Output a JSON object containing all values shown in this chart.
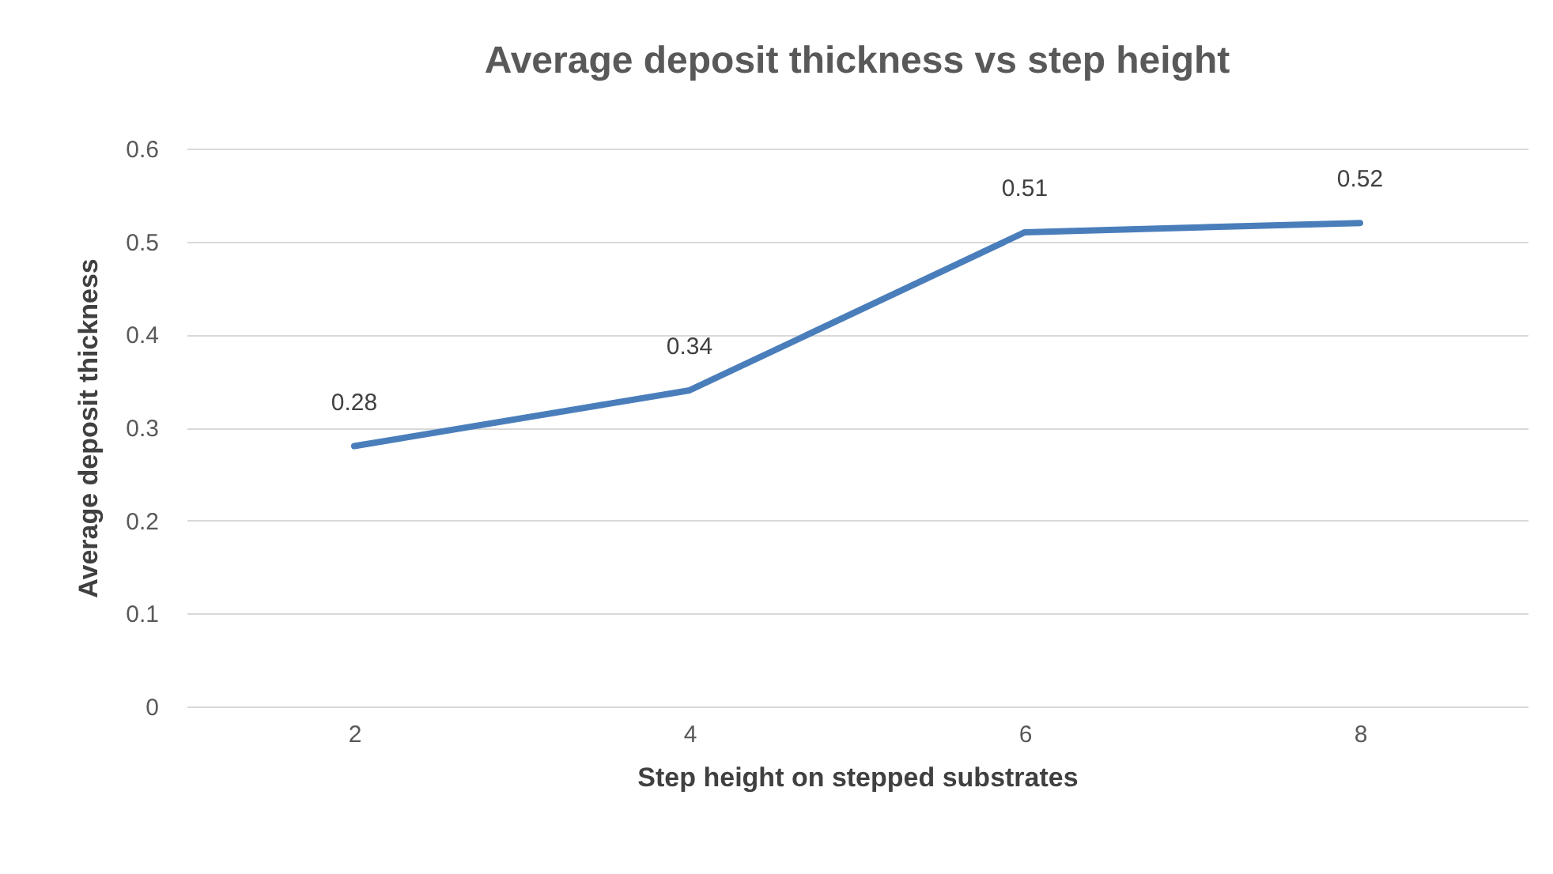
{
  "chart_data": {
    "type": "line",
    "title": "Average deposit thickness vs  step height",
    "xlabel": "Step height on stepped substrates",
    "ylabel": "Average deposit thickness",
    "categories": [
      "2",
      "4",
      "6",
      "8"
    ],
    "series": [
      {
        "color": "#4a7ebb",
        "values": [
          0.28,
          0.34,
          0.51,
          0.52
        ]
      }
    ],
    "ylim": [
      0,
      0.6
    ],
    "yticks": [
      0,
      0.1,
      0.2,
      0.3,
      0.4,
      0.5,
      0.6
    ],
    "grid": "y",
    "data_labels": true,
    "legend": false,
    "marker": "none",
    "line_style": "solid"
  }
}
